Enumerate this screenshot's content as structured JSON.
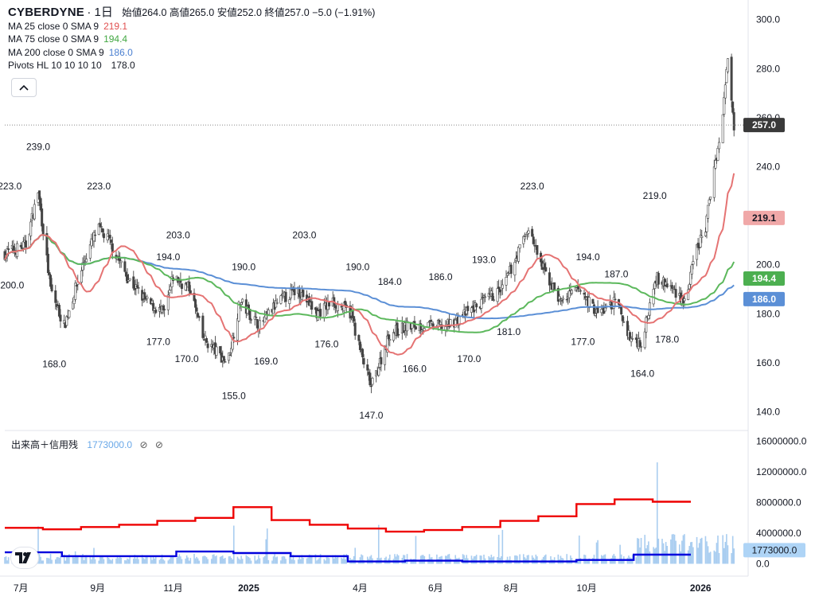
{
  "legend": {
    "symbol": "CYBERDYNE",
    "timeframe": "1日",
    "ohlc": "始値264.0 高値265.0 安値252.0 終値257.0 −5.0 (−1.91%)",
    "ma25_label": "MA 25 close 0 SMA 9",
    "ma25_value": "219.1",
    "ma75_label": "MA 75 close 0 SMA 9",
    "ma75_value": "194.4",
    "ma200_label": "MA 200 close 0 SMA 9",
    "ma200_value": "186.0",
    "pivots_label": "Pivots HL 10 10 10 10",
    "pivots_value": "178.0"
  },
  "volume_legend": {
    "label": "出来高＋信用残",
    "value": "1773000.0",
    "icon_a": "⊘",
    "icon_b": "⊘"
  },
  "colors": {
    "candle": "#444444",
    "ma25": "#e57373",
    "ma75": "#5cb85c",
    "ma200": "#5b8fd6",
    "volume": "#a9cdf0",
    "margin_buy": "#ee0000",
    "margin_sell": "#0000dd",
    "price_tag": "#3a3a3a"
  },
  "chart_data": [
    {
      "type": "candlestick",
      "title": "CYBERDYNE 1日",
      "x_ticks": [
        "7月",
        "9月",
        "11月",
        "2025",
        "4月",
        "6月",
        "8月",
        "10月",
        "2026"
      ],
      "y_ticks": [
        140.0,
        160.0,
        180.0,
        200.0,
        240.0,
        260.0,
        280.0,
        300.0
      ],
      "ylim": [
        133,
        304
      ],
      "last_price": 257.0,
      "series_close": [
        [
          "2024-06-20",
          205
        ],
        [
          "2024-07-05",
          208
        ],
        [
          "2024-07-15",
          230
        ],
        [
          "2024-07-25",
          190
        ],
        [
          "2024-08-05",
          175
        ],
        [
          "2024-08-20",
          200
        ],
        [
          "2024-09-01",
          215
        ],
        [
          "2024-09-10",
          210
        ],
        [
          "2024-09-25",
          195
        ],
        [
          "2024-10-10",
          185
        ],
        [
          "2024-10-25",
          180
        ],
        [
          "2024-11-01",
          195
        ],
        [
          "2024-11-15",
          190
        ],
        [
          "2024-11-25",
          170
        ],
        [
          "2024-12-15",
          160
        ],
        [
          "2024-12-25",
          185
        ],
        [
          "2025-01-10",
          175
        ],
        [
          "2025-01-25",
          185
        ],
        [
          "2025-02-10",
          190
        ],
        [
          "2025-02-25",
          180
        ],
        [
          "2025-03-10",
          185
        ],
        [
          "2025-03-25",
          180
        ],
        [
          "2025-04-01",
          165
        ],
        [
          "2025-04-10",
          150
        ],
        [
          "2025-04-25",
          172
        ],
        [
          "2025-05-10",
          175
        ],
        [
          "2025-05-25",
          175
        ],
        [
          "2025-06-10",
          175
        ],
        [
          "2025-06-25",
          180
        ],
        [
          "2025-07-10",
          185
        ],
        [
          "2025-07-25",
          190
        ],
        [
          "2025-08-15",
          215
        ],
        [
          "2025-08-25",
          200
        ],
        [
          "2025-09-10",
          185
        ],
        [
          "2025-09-25",
          190
        ],
        [
          "2025-10-10",
          180
        ],
        [
          "2025-10-25",
          185
        ],
        [
          "2025-11-05",
          170
        ],
        [
          "2025-11-15",
          168
        ],
        [
          "2025-11-25",
          195
        ],
        [
          "2025-12-10",
          190
        ],
        [
          "2025-12-20",
          185
        ],
        [
          "2025-12-28",
          205
        ],
        [
          "2026-01-05",
          215
        ],
        [
          "2026-01-12",
          240
        ],
        [
          "2026-01-18",
          255
        ],
        [
          "2026-01-23",
          285
        ],
        [
          "2026-01-28",
          257
        ]
      ],
      "ma25": {
        "name": "MA 25",
        "value": 219.1
      },
      "ma75": {
        "name": "MA 75",
        "value": 194.4
      },
      "ma200": {
        "name": "MA 200",
        "value": 186.0
      },
      "pivots": [
        {
          "date": "2024-06-22",
          "value": "223.0",
          "kind": "high"
        },
        {
          "date": "2024-06-24",
          "value": "200.0",
          "kind": "low"
        },
        {
          "date": "2024-07-15",
          "value": "239.0",
          "kind": "high"
        },
        {
          "date": "2024-07-28",
          "value": "168.0",
          "kind": "low"
        },
        {
          "date": "2024-09-02",
          "value": "223.0",
          "kind": "high"
        },
        {
          "date": "2024-10-20",
          "value": "177.0",
          "kind": "low"
        },
        {
          "date": "2024-11-05",
          "value": "203.0",
          "kind": "high"
        },
        {
          "date": "2024-10-28",
          "value": "194.0",
          "kind": "high"
        },
        {
          "date": "2024-11-12",
          "value": "170.0",
          "kind": "low"
        },
        {
          "date": "2024-12-20",
          "value": "155.0",
          "kind": "low"
        },
        {
          "date": "2024-12-28",
          "value": "190.0",
          "kind": "high"
        },
        {
          "date": "2025-01-15",
          "value": "169.0",
          "kind": "low"
        },
        {
          "date": "2025-02-15",
          "value": "203.0",
          "kind": "high"
        },
        {
          "date": "2025-03-05",
          "value": "176.0",
          "kind": "low"
        },
        {
          "date": "2025-03-30",
          "value": "190.0",
          "kind": "high"
        },
        {
          "date": "2025-04-10",
          "value": "147.0",
          "kind": "low"
        },
        {
          "date": "2025-04-25",
          "value": "184.0",
          "kind": "high"
        },
        {
          "date": "2025-05-15",
          "value": "166.0",
          "kind": "low"
        },
        {
          "date": "2025-06-05",
          "value": "186.0",
          "kind": "high"
        },
        {
          "date": "2025-06-28",
          "value": "170.0",
          "kind": "low"
        },
        {
          "date": "2025-07-10",
          "value": "193.0",
          "kind": "high"
        },
        {
          "date": "2025-07-30",
          "value": "181.0",
          "kind": "low"
        },
        {
          "date": "2025-08-18",
          "value": "223.0",
          "kind": "high"
        },
        {
          "date": "2025-09-28",
          "value": "177.0",
          "kind": "low"
        },
        {
          "date": "2025-10-02",
          "value": "194.0",
          "kind": "high"
        },
        {
          "date": "2025-10-25",
          "value": "187.0",
          "kind": "high"
        },
        {
          "date": "2025-11-15",
          "value": "164.0",
          "kind": "low"
        },
        {
          "date": "2025-11-25",
          "value": "219.0",
          "kind": "high"
        },
        {
          "date": "2025-12-05",
          "value": "178.0",
          "kind": "low"
        }
      ]
    },
    {
      "type": "bar",
      "title": "出来高＋信用残",
      "y_ticks": [
        0.0,
        4000000.0,
        8000000.0,
        12000000.0,
        16000000.0
      ],
      "ylim": [
        0,
        16000000
      ],
      "last_volume": 1773000.0,
      "margin_buy_levels": [
        4700000,
        4500000,
        4800000,
        5100000,
        5600000,
        6000000,
        7400000,
        5700000,
        5100000,
        4600000,
        4200000,
        4400000,
        4800000,
        5600000,
        6200000,
        7800000,
        8400000,
        8100000
      ],
      "margin_sell_levels": [
        1500000,
        1000000,
        1000000,
        1600000,
        1400000,
        1000000,
        300000,
        400000,
        300000,
        300000,
        500000,
        1200000
      ]
    }
  ],
  "axis_tags": {
    "last_price": "257.0",
    "ma25": "219.1",
    "ma75": "194.4",
    "ma200": "186.0",
    "volume": "1773000.0"
  }
}
